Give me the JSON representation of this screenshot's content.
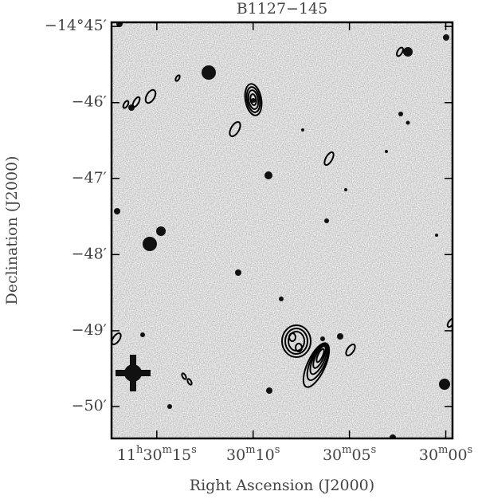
{
  "chart_data": {
    "type": "image",
    "title": "B1127−145",
    "x_label": "Right Ascension (J2000)",
    "y_label": "Declination (J2000)",
    "xlim": [
      17.35,
      -0.35
    ],
    "xticks": [
      {
        "value": 15,
        "label": "11h30m15s"
      },
      {
        "value": 10,
        "label": "30m10s"
      },
      {
        "value": 5,
        "label": "30m05s"
      },
      {
        "value": 0,
        "label": "30m00s"
      }
    ],
    "ylim": [
      -14.8403,
      -14.7491
    ],
    "yticks": [
      {
        "value": -14.75,
        "label": "−14°45′"
      },
      {
        "value": -14.7667,
        "label": "−46′"
      },
      {
        "value": -14.7833,
        "label": "−47′"
      },
      {
        "value": -14.8,
        "label": "−48′"
      },
      {
        "value": -14.8167,
        "label": "−49′"
      },
      {
        "value": -14.8333,
        "label": "−50′"
      }
    ]
  }
}
